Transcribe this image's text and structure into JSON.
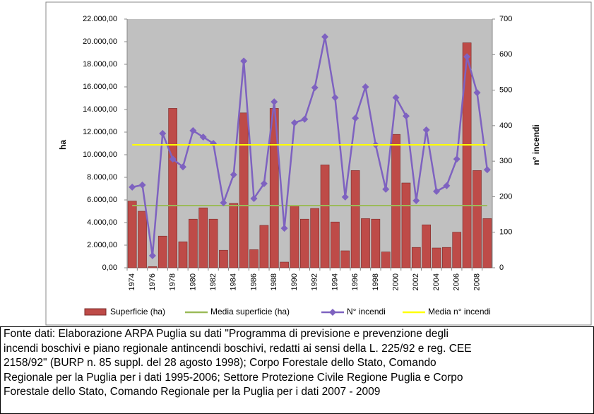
{
  "chart_data": {
    "type": "bar",
    "categories": [
      "1974",
      null,
      "1976",
      null,
      "1978",
      null,
      "1980",
      null,
      "1982",
      null,
      "1984",
      null,
      "1986",
      null,
      "1988",
      null,
      "1990",
      null,
      "1992",
      null,
      "1994",
      null,
      "1996",
      null,
      "1998",
      null,
      "2000",
      null,
      "2002",
      null,
      "2004",
      null,
      "2006",
      null,
      "2008",
      null
    ],
    "y_label": "ha",
    "y2_label": "n° incendi",
    "ylim": [
      0,
      22000
    ],
    "yticks": [
      {
        "value": 0,
        "label": "0,00"
      },
      {
        "value": 2000,
        "label": "2.000,00"
      },
      {
        "value": 4000,
        "label": "4.000,00"
      },
      {
        "value": 6000,
        "label": "6.000,00"
      },
      {
        "value": 8000,
        "label": "8.000,00"
      },
      {
        "value": 10000,
        "label": "10.000,00"
      },
      {
        "value": 12000,
        "label": "12.000,00"
      },
      {
        "value": 14000,
        "label": "14.000,00"
      },
      {
        "value": 16000,
        "label": "16.000,00"
      },
      {
        "value": 18000,
        "label": "18.000,00"
      },
      {
        "value": 20000,
        "label": "20.000,00"
      },
      {
        "value": 22000,
        "label": "22.000,00"
      }
    ],
    "y2lim": [
      0,
      700
    ],
    "y2ticks": [
      0,
      100,
      200,
      300,
      400,
      500,
      600,
      700
    ],
    "series": [
      {
        "name": "Superficie (ha)",
        "type": "bar",
        "color": "#be4b48",
        "values": [
          5900,
          5000,
          100,
          2800,
          14100,
          2300,
          4300,
          5300,
          4300,
          1550,
          5700,
          13700,
          1600,
          3750,
          14100,
          500,
          5500,
          4300,
          5250,
          9100,
          4050,
          1500,
          8600,
          4350,
          4300,
          1400,
          11800,
          7500,
          1800,
          3800,
          1750,
          1800,
          3150,
          19900,
          8600,
          4350
        ]
      },
      {
        "name": "Media superficie (ha)",
        "type": "line",
        "color": "#9bbb59",
        "values": [
          5500,
          5500,
          5500,
          5500,
          5500,
          5500,
          5500,
          5500,
          5500,
          5500,
          5500,
          5500,
          5500,
          5500,
          5500,
          5500,
          5500,
          5500,
          5500,
          5500,
          5500,
          5500,
          5500,
          5500,
          5500,
          5500,
          5500,
          5500,
          5500,
          5500,
          5500,
          5500,
          5500,
          5500,
          5500,
          5500
        ]
      },
      {
        "name": "N° incendi",
        "type": "line",
        "axis": "y2",
        "marker": "diamond",
        "color": "#7e62c0",
        "values": [
          227,
          233,
          34,
          378,
          306,
          284,
          386,
          368,
          350,
          183,
          262,
          582,
          195,
          237,
          467,
          111,
          408,
          418,
          507,
          650,
          479,
          199,
          421,
          509,
          346,
          221,
          479,
          427,
          189,
          388,
          215,
          231,
          306,
          594,
          493,
          276
        ]
      },
      {
        "name": "Media n° incendi",
        "type": "line",
        "axis": "y2",
        "color": "#ffff00",
        "values": [
          346,
          346,
          346,
          346,
          346,
          346,
          346,
          346,
          346,
          346,
          346,
          346,
          346,
          346,
          346,
          346,
          346,
          346,
          346,
          346,
          346,
          346,
          346,
          346,
          346,
          346,
          346,
          346,
          346,
          346,
          346,
          346,
          346,
          346,
          346,
          346
        ]
      }
    ]
  },
  "caption": {
    "lines": [
      "Fonte dati: Elaborazione ARPA Puglia su dati \"Programma di previsione e prevenzione degli",
      "incendi boschivi e piano regionale antincendi boschivi, redatti ai sensi della L. 225/92 e reg. CEE",
      "2158/92\" (BURP n. 85 suppl. del 28 agosto 1998); Corpo Forestale dello Stato, Comando",
      "Regionale per la Puglia per i dati 1995-2006; Settore Protezione Civile Regione Puglia e Corpo",
      "Forestale dello Stato, Comando Regionale per la Puglia per i dati 2007 - 2009"
    ]
  }
}
